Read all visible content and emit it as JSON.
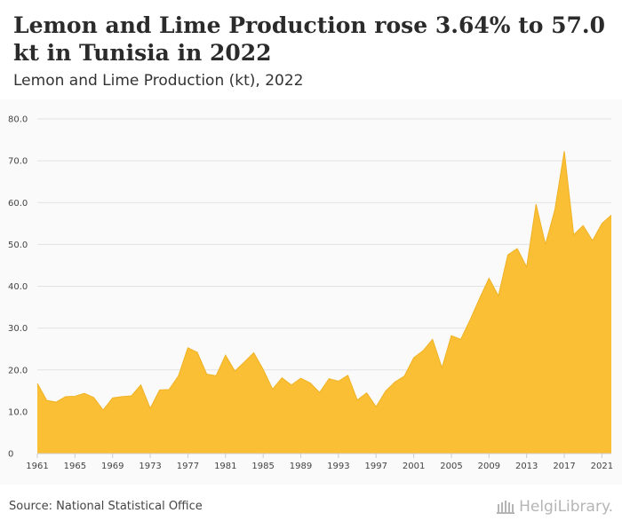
{
  "header": {
    "title": "Lemon and Lime Production rose 3.64% to 57.0 kt in Tunisia in 2022",
    "subtitle": "Lemon and Lime Production (kt), 2022"
  },
  "footer": {
    "source": "Source: National Statistical Office",
    "brand": "HelgiLibrary."
  },
  "colors": {
    "area_fill": "#fbbf35",
    "area_stroke": "#f0b224",
    "grid": "#e2e2e2",
    "axis": "#cccccc"
  },
  "chart_data": {
    "type": "area",
    "title": "Lemon and Lime Production (kt), 2022",
    "xlabel": "",
    "ylabel": "",
    "xlim": [
      1961,
      2022
    ],
    "ylim": [
      0,
      80
    ],
    "grid": true,
    "legend": "none",
    "x_ticks": [
      "1961",
      "1965",
      "1969",
      "1973",
      "1977",
      "1981",
      "1985",
      "1989",
      "1993",
      "1997",
      "2001",
      "2005",
      "2009",
      "2013",
      "2017",
      "2021"
    ],
    "y_ticks": [
      "0",
      "10.0",
      "20.0",
      "30.0",
      "40.0",
      "50.0",
      "60.0",
      "70.0",
      "80.0"
    ],
    "series": [
      {
        "x": [
          1961,
          1962,
          1963,
          1964,
          1965,
          1966,
          1967,
          1968,
          1969,
          1970,
          1971,
          1972,
          1973,
          1974,
          1975,
          1976,
          1977,
          1978,
          1979,
          1980,
          1981,
          1982,
          1983,
          1984,
          1985,
          1986,
          1987,
          1988,
          1989,
          1990,
          1991,
          1992,
          1993,
          1994,
          1995,
          1996,
          1997,
          1998,
          1999,
          2000,
          2001,
          2002,
          2003,
          2004,
          2005,
          2006,
          2007,
          2008,
          2009,
          2010,
          2011,
          2012,
          2013,
          2014,
          2015,
          2016,
          2017,
          2018,
          2019,
          2020,
          2021,
          2022
        ],
        "values": [
          16.8,
          12.7,
          12.3,
          13.6,
          13.7,
          14.4,
          13.4,
          10.4,
          13.3,
          13.6,
          13.8,
          16.4,
          10.8,
          15.2,
          15.3,
          18.6,
          25.3,
          24.2,
          19.0,
          18.6,
          23.5,
          19.7,
          21.9,
          24.1,
          20.1,
          15.4,
          18.1,
          16.4,
          18.0,
          16.9,
          14.6,
          17.9,
          17.3,
          18.7,
          12.8,
          14.5,
          11.2,
          14.9,
          17.1,
          18.5,
          22.9,
          24.6,
          27.3,
          20.5,
          28.2,
          27.3,
          32.0,
          37.1,
          41.9,
          37.7,
          47.5,
          49.0,
          44.6,
          59.6,
          50.0,
          58.3,
          72.3,
          52.3,
          54.5,
          50.9,
          55.0,
          57.0
        ]
      }
    ]
  }
}
